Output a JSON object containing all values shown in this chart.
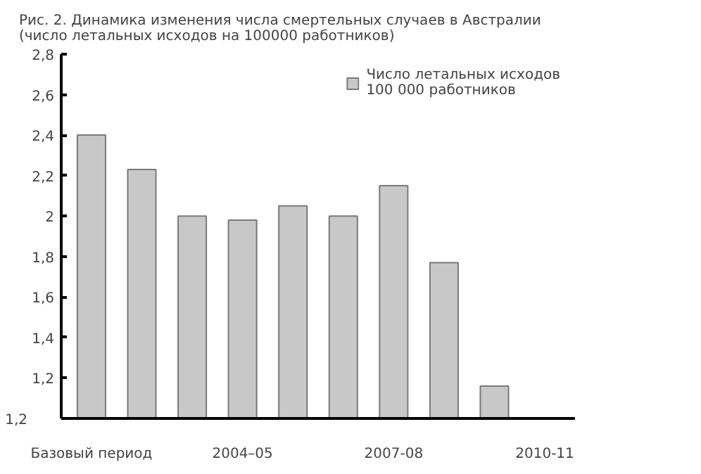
{
  "chart_data": {
    "type": "bar",
    "title": "Рис. 2. Динамика изменения числа смертельных случаев в Австралии\n(число летальных исходов на 100000 работников)",
    "categories": [
      "Базовый период",
      null,
      null,
      "2004–05",
      null,
      null,
      "2007-08",
      null,
      null,
      "2010-11"
    ],
    "series": [
      {
        "name": "Число летальных исходов\n100 000 работников",
        "color": "#c8c8c8",
        "values": [
          2.4,
          2.23,
          2.0,
          1.98,
          2.05,
          2.0,
          2.15,
          1.77,
          1.16,
          null
        ]
      }
    ],
    "ylim": [
      1.0,
      2.8
    ],
    "annotations": [
      "1,2"
    ],
    "yticks": [
      {
        "value": 1.0,
        "label": null
      },
      {
        "value": 1.2,
        "label": "1,2"
      },
      {
        "value": 1.4,
        "label": "1,4"
      },
      {
        "value": 1.6,
        "label": "1,6"
      },
      {
        "value": 1.8,
        "label": "1,8"
      },
      {
        "value": 2.0,
        "label": "2"
      },
      {
        "value": 2.2,
        "label": "2,2"
      },
      {
        "value": 2.4,
        "label": "2,4"
      },
      {
        "value": 2.6,
        "label": "2,6"
      },
      {
        "value": 2.8,
        "label": "2,8"
      }
    ],
    "legend": "top right",
    "grid": false
  }
}
